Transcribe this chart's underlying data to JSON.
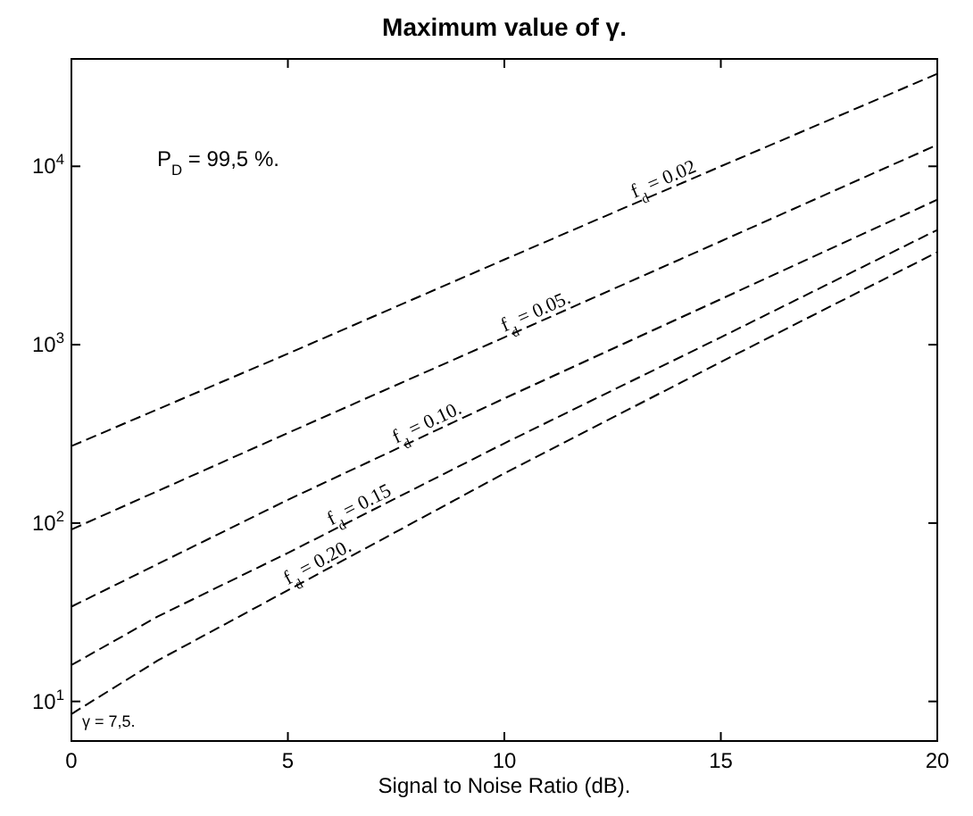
{
  "chart_data": {
    "type": "line",
    "title": "Maximum value of γ.",
    "xlabel": "Signal to Noise Ratio (dB).",
    "log": "y",
    "grid": false,
    "legend": false,
    "marker": "none",
    "line_style": "dashed",
    "xlim": [
      0,
      20
    ],
    "xticks": [
      0,
      5,
      10,
      15,
      20
    ],
    "ylim": [
      6,
      40000
    ],
    "yticks": [
      {
        "value": 10,
        "label": "10$^{1}$"
      },
      {
        "value": 100,
        "label": "10$^{2}$"
      },
      {
        "value": 1000,
        "label": "10$^{3}$"
      },
      {
        "value": 10000,
        "label": "10$^{4}$"
      }
    ],
    "annotations": [
      "P$_{D}$ = 99,5 %.",
      "γ = 7,5."
    ],
    "series": [
      {
        "name": "f$_{d}$ = 0.02",
        "color": "#000000",
        "x": [
          0,
          5,
          10,
          15,
          20
        ],
        "values": [
          270,
          890,
          3000,
          10000,
          33000
        ]
      },
      {
        "name": "f$_{d}$ = 0.05.",
        "color": "#000000",
        "x": [
          0,
          5,
          10,
          15,
          20
        ],
        "values": [
          92,
          320,
          1100,
          3800,
          13200
        ]
      },
      {
        "name": "f$_{d}$ = 0.10.",
        "color": "#000000",
        "x": [
          0,
          5,
          10,
          15,
          20
        ],
        "values": [
          34,
          135,
          500,
          1800,
          6500
        ]
      },
      {
        "name": "f$_{d}$ = 0.15",
        "color": "#000000",
        "x": [
          0,
          2,
          5,
          10,
          15,
          20
        ],
        "values": [
          16,
          30,
          68,
          280,
          1100,
          4400
        ]
      },
      {
        "name": "f$_{d}$ = 0.20.",
        "color": "#000000",
        "x": [
          0,
          2,
          5,
          10,
          15,
          20
        ],
        "values": [
          8.5,
          17,
          42,
          190,
          800,
          3300
        ]
      }
    ]
  }
}
